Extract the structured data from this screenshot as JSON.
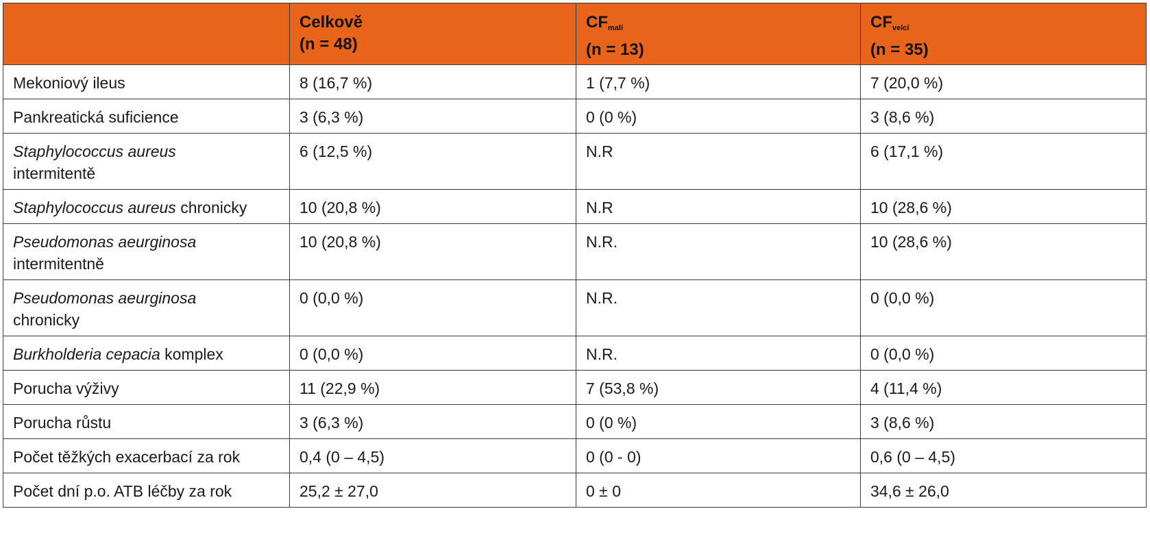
{
  "header": {
    "col1": "",
    "col2": {
      "title": "Celkově",
      "n": "(n = 48)"
    },
    "col3": {
      "title": "CF",
      "sub": "malí",
      "n": " (n = 13)"
    },
    "col4": {
      "title": "CF",
      "sub": "velcí",
      "n": " (n = 35)"
    }
  },
  "rows": [
    {
      "label": "Mekoniový ileus",
      "c2": "8 (16,7 %)",
      "c3": "1 (7,7 %)",
      "c4": "7 (20,0 %)"
    },
    {
      "label": "Pankreatická suficience",
      "c2": "3 (6,3 %)",
      "c3": "0 (0 %)",
      "c4": "3 (8,6 %)"
    },
    {
      "label_italic": "Staphylococcus aureus",
      "label_rest": "intermitentě",
      "c2": "6 (12,5 %)",
      "c3": "N.R",
      "c4": "6 (17,1 %)"
    },
    {
      "label_italic": "Staphylococcus aureus",
      "label_rest": " chronicky",
      "c2": "10 (20,8 %)",
      "c3": "N.R",
      "c4": "10 (28,6 %)"
    },
    {
      "label_italic": "Pseudomonas aeurginosa",
      "label_rest": "intermitentně",
      "c2": "10 (20,8 %)",
      "c3": "N.R.",
      "c4": "10 (28,6 %)"
    },
    {
      "label_italic": "Pseudomonas aeurginosa",
      "label_rest": "chronicky",
      "c2": "0 (0,0 %)",
      "c3": "N.R.",
      "c4": "0 (0,0 %)"
    },
    {
      "label_italic": "Burkholderia cepacia",
      "label_rest": " komplex",
      "c2": "0 (0,0 %)",
      "c3": "N.R.",
      "c4": "0 (0,0 %)"
    },
    {
      "label": "Porucha výživy",
      "c2": "11 (22,9 %)",
      "c3": "7 (53,8 %)",
      "c4": "4 (11,4 %)"
    },
    {
      "label": "Porucha růstu",
      "c2": "3 (6,3 %)",
      "c3": "0 (0 %)",
      "c4": "3 (8,6 %)"
    },
    {
      "label": "Počet těžkých exacerbací za rok",
      "c2": "0,4 (0 – 4,5)",
      "c3": "0 (0 - 0)",
      "c4": "0,6 (0 – 4,5)"
    },
    {
      "label": "Počet dní p.o. ATB léčby za rok",
      "c2": "25,2 ± 27,0",
      "c3": "0 ± 0",
      "c4": "34,6 ± 26,0"
    }
  ],
  "colors": {
    "header_bg": "#e8641a",
    "border": "#3a3a3a"
  }
}
